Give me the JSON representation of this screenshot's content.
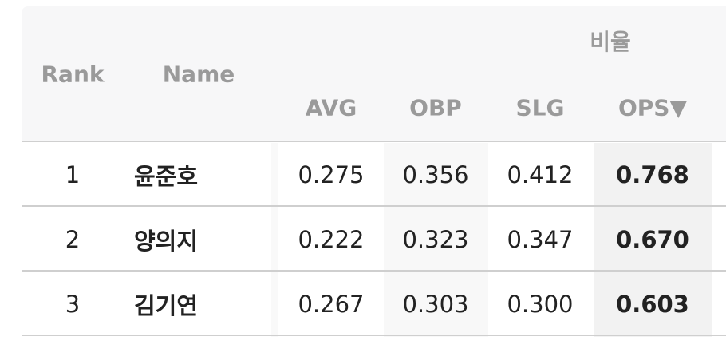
{
  "header": {
    "group": "비율",
    "columns": [
      "Rank",
      "Name",
      "AVG",
      "OBP",
      "SLG",
      "OPS▼"
    ]
  },
  "table": {
    "rows": [
      [
        "1",
        "윤준호",
        "0.275",
        "0.356",
        "0.412",
        "0.768"
      ],
      [
        "2",
        "양의지",
        "0.222",
        "0.323",
        "0.347",
        "0.670"
      ],
      [
        "3",
        "김기연",
        "0.267",
        "0.303",
        "0.300",
        "0.603"
      ]
    ]
  }
}
